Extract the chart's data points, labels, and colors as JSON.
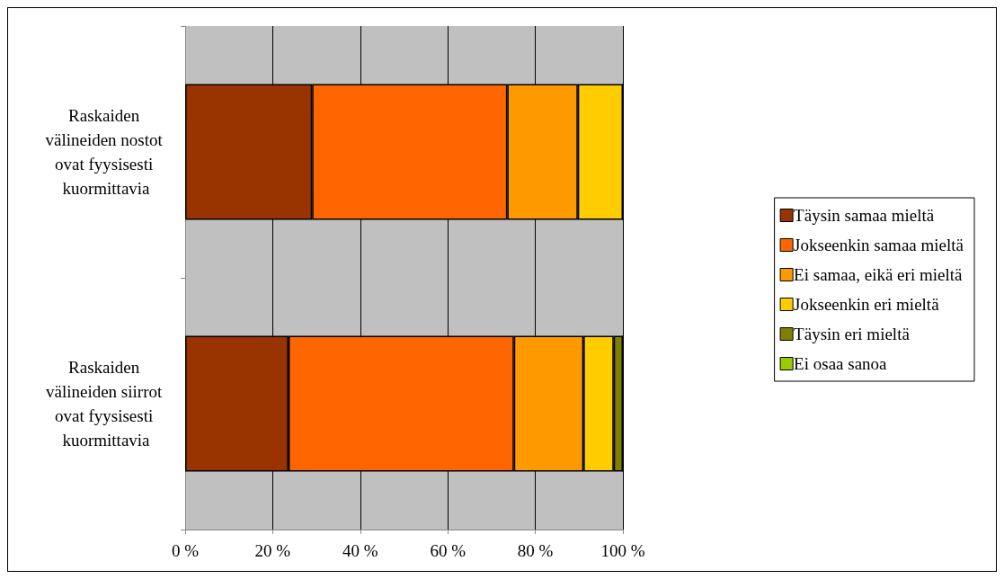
{
  "chart_data": {
    "type": "bar",
    "orientation": "horizontal",
    "stacked": true,
    "categories": [
      "Raskaiden välineiden nostot ovat fyysisesti kuormittavia",
      "Raskaiden välineiden siirrot ovat fyysisesti kuormittavia"
    ],
    "series": [
      {
        "name": "Täysin samaa mieltä",
        "color": "#993300",
        "values": [
          29,
          23.6
        ]
      },
      {
        "name": "Jokseenkin samaa mieltä",
        "color": "#ff6600",
        "values": [
          44.6,
          51.5
        ]
      },
      {
        "name": "Ei samaa, eikä eri mieltä",
        "color": "#ff9900",
        "values": [
          16.1,
          15.9
        ]
      },
      {
        "name": "Jokseenkin eri mieltä",
        "color": "#ffcc00",
        "values": [
          10.3,
          6.9
        ]
      },
      {
        "name": "Täysin eri mieltä",
        "color": "#808000",
        "values": [
          0,
          2.1
        ]
      },
      {
        "name": "Ei osaa sanoa",
        "color": "#99cc00",
        "values": [
          0,
          0
        ]
      }
    ],
    "xlim": [
      0,
      100
    ],
    "xticks": [
      {
        "value": 0,
        "label": "0 %"
      },
      {
        "value": 20,
        "label": "20 %"
      },
      {
        "value": 40,
        "label": "40 %"
      },
      {
        "value": 60,
        "label": "60 %"
      },
      {
        "value": 80,
        "label": "80 %"
      },
      {
        "value": 100,
        "label": "100 %"
      }
    ],
    "grid": "x",
    "legend": "right"
  }
}
